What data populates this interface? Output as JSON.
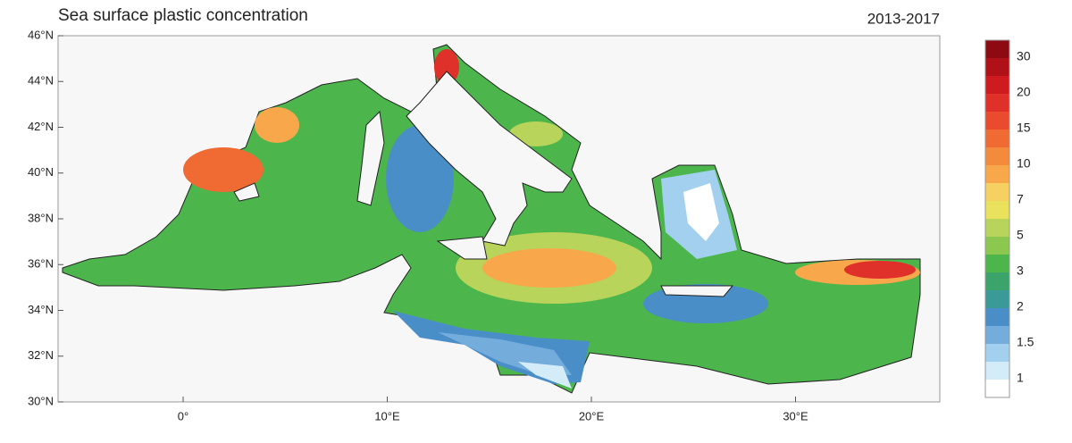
{
  "title": "Sea surface plastic concentration",
  "period": "2013-2017",
  "lat_labels": [
    "46°N",
    "44°N",
    "42°N",
    "40°N",
    "38°N",
    "36°N",
    "34°N",
    "32°N",
    "30°N"
  ],
  "lon_labels": [
    "0°",
    "10°E",
    "20°E",
    "30°E"
  ],
  "colorbar": {
    "labels": [
      "30",
      "20",
      "15",
      "10",
      "7",
      "5",
      "3",
      "2",
      "1.5",
      "1"
    ],
    "colors": [
      "#8e0a12",
      "#b01018",
      "#cf1a20",
      "#e0302a",
      "#ea4a2e",
      "#f06a34",
      "#f48a3c",
      "#f8a84a",
      "#f6d060",
      "#eae25c",
      "#b8d45a",
      "#8cc850",
      "#4cb64c",
      "#3aa46a",
      "#3a9a98",
      "#4a8ec8",
      "#74acdc",
      "#a2d0ee",
      "#d4ecf8",
      "#ffffff"
    ]
  }
}
